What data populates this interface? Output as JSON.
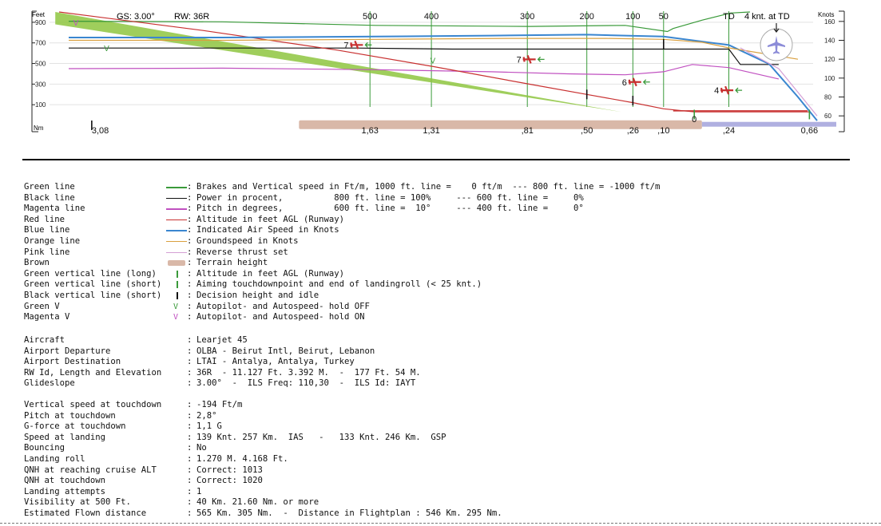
{
  "chart_data": {
    "type": "line",
    "title": "GS: 3.00°",
    "subtitle": "RW: 36R",
    "left_axis": {
      "label": "Feet",
      "ticks": [
        "900",
        "700",
        "500",
        "300",
        "100"
      ],
      "values": [
        900,
        700,
        500,
        300,
        100
      ],
      "range": [
        -100,
        1000
      ]
    },
    "right_axis": {
      "label": "Knots",
      "ticks": [
        "160",
        "140",
        "120",
        "100",
        "80",
        "60"
      ],
      "values": [
        160,
        140,
        120,
        100,
        80,
        60
      ],
      "range": [
        50,
        170
      ]
    },
    "x_axis": {
      "label": "Nm",
      "range": [
        3.3,
        -0.75
      ]
    },
    "top_markers": [
      {
        "label": "500",
        "x": 1.63
      },
      {
        "label": "400",
        "x": 1.31
      },
      {
        "label": "300",
        "x": 0.81
      },
      {
        "label": "200",
        "x": 0.5
      },
      {
        "label": "100",
        "x": 0.26
      },
      {
        "label": "50",
        "x": 0.1
      },
      {
        "label": "TD",
        "x": -0.24
      }
    ],
    "top_right_note": "4 knt. at TD",
    "bottom_labels": [
      {
        "label": "3,08",
        "x": 3.08
      },
      {
        "label": "1,63",
        "x": 1.63
      },
      {
        "label": "1,31",
        "x": 1.31
      },
      {
        "label": ",81",
        "x": 0.81
      },
      {
        "label": ",50",
        "x": 0.5
      },
      {
        "label": ",26",
        "x": 0.26
      },
      {
        "label": ",10",
        "x": 0.1
      },
      {
        "label": "0",
        "x": -0.06
      },
      {
        "label": ",24",
        "x": -0.24
      },
      {
        "label": "0,66",
        "x": -0.66
      }
    ],
    "series": [
      {
        "name": "Green line",
        "color": "#3a9a3a",
        "axis": "feet",
        "x": [
          3.2,
          2.4,
          1.6,
          0.8,
          0.3,
          0.08,
          0.05,
          -0.1,
          -0.25,
          -0.35
        ],
        "y": [
          910,
          905,
          870,
          860,
          870,
          810,
          840,
          920,
          990,
          1000
        ]
      },
      {
        "name": "Black line",
        "color": "#111111",
        "axis": "feet",
        "x": [
          3.2,
          2.4,
          1.7,
          1.2,
          0.8,
          0.4,
          0.1,
          -0.24,
          -0.3,
          -0.5
        ],
        "y": [
          650,
          650,
          650,
          640,
          640,
          640,
          640,
          640,
          490,
          490
        ]
      },
      {
        "name": "Magenta line",
        "color": "#c050c0",
        "axis": "feet",
        "x": [
          3.2,
          2.4,
          1.6,
          1.0,
          0.6,
          0.3,
          0.1,
          -0.05,
          -0.24,
          -0.5
        ],
        "y": [
          450,
          455,
          440,
          420,
          400,
          390,
          420,
          490,
          460,
          350
        ]
      },
      {
        "name": "Red line",
        "color": "#c83030",
        "axis": "feet",
        "x": [
          3.25,
          2.5,
          1.8,
          1.3,
          0.8,
          0.5,
          0.26,
          0.1,
          -0.06,
          -0.66
        ],
        "y": [
          1000,
          820,
          630,
          470,
          300,
          200,
          120,
          60,
          30,
          30
        ]
      },
      {
        "name": "Blue line",
        "color": "#3a86d0",
        "axis": "knots",
        "x": [
          3.2,
          2.8,
          2.4,
          1.6,
          1.0,
          0.5,
          0.1,
          -0.24,
          -0.45,
          -0.6,
          -0.7
        ],
        "y": [
          143,
          143,
          143,
          144,
          145,
          146,
          144,
          135,
          115,
          80,
          55
        ]
      },
      {
        "name": "Orange line",
        "color": "#d9a040",
        "axis": "knots",
        "x": [
          3.2,
          2.4,
          1.6,
          0.9,
          0.4,
          0.1,
          -0.1,
          -0.24,
          -0.6
        ],
        "y": [
          140,
          140,
          141,
          142,
          142,
          141,
          138,
          132,
          120
        ]
      },
      {
        "name": "Pink line",
        "color": "#d59fd5",
        "axis": "knots",
        "x": [
          -0.3,
          -0.5,
          -0.62,
          -0.7
        ],
        "y": [
          132,
          110,
          80,
          60
        ]
      }
    ],
    "glideslope_band": {
      "color": "#8ec63f",
      "x": [
        3.27,
        0.32
      ],
      "y_top": [
        1000,
        30
      ],
      "y_bottom": [
        880,
        30
      ]
    },
    "terrain": {
      "color": "#d9b8a8",
      "x": [
        2.0,
        -0.1
      ],
      "y": -90
    },
    "runway": {
      "color": "#b0b0e0",
      "x": [
        -0.1,
        -0.8
      ],
      "y": -90
    },
    "runway_baseline": {
      "color": "#c83030",
      "x": [
        0.05,
        -0.65
      ],
      "y": 40
    },
    "green_verticals": [
      1.63,
      1.31,
      0.81,
      0.5,
      0.26,
      0.1,
      -0.24
    ],
    "short_markers": [
      {
        "color": "#111111",
        "x": 3.08,
        "y": -100
      },
      {
        "color": "#111111",
        "x": 0.5,
        "y": 200
      },
      {
        "color": "#111111",
        "x": 0.26,
        "y": 140
      },
      {
        "color": "#111111",
        "x": 0.1,
        "y": 690
      },
      {
        "color": "#3a9a3a",
        "x": -0.06,
        "y": 5
      },
      {
        "color": "#3a9a3a",
        "x": -0.66,
        "y": 5
      }
    ],
    "v_marks": [
      {
        "color": "#c050c0",
        "x": 3.16,
        "y": 900
      },
      {
        "color": "#3a9a3a",
        "x": 3.0,
        "y": 650
      },
      {
        "color": "#3a9a3a",
        "x": 1.3,
        "y": 530
      }
    ],
    "wind_markers": [
      {
        "label": "7",
        "x": 1.7,
        "y": 680
      },
      {
        "label": "7",
        "x": 0.8,
        "y": 540
      },
      {
        "label": "6",
        "x": 0.25,
        "y": 320
      },
      {
        "label": "4",
        "x": -0.23,
        "y": 240
      }
    ]
  },
  "legend": [
    {
      "name": "Green line",
      "symbol": "line",
      "color": "#3a9a3a",
      "desc": "Brakes and Vertical speed in Ft/m, 1000 ft. line =    0 ft/m  --- 800 ft. line = -1000 ft/m"
    },
    {
      "name": "Black line",
      "symbol": "line",
      "color": "#111111",
      "desc": "Power in procent,          800 ft. line = 100%     --- 600 ft. line =     0%"
    },
    {
      "name": "Magenta line",
      "symbol": "line",
      "color": "#c050c0",
      "desc": "Pitch in degrees,          600 ft. line =  10°     --- 400 ft. line =     0°"
    },
    {
      "name": "Red line",
      "symbol": "line",
      "color": "#c83030",
      "desc": "Altitude in feet AGL (Runway)"
    },
    {
      "name": "Blue line",
      "symbol": "line",
      "color": "#3a86d0",
      "desc": "Indicated Air Speed in Knots"
    },
    {
      "name": "Orange line",
      "symbol": "line",
      "color": "#d9a040",
      "desc": "Groundspeed in Knots"
    },
    {
      "name": "Pink line",
      "symbol": "line",
      "color": "#d59fd5",
      "desc": "Reverse thrust set"
    },
    {
      "name": "Brown",
      "symbol": "terrain",
      "color": "#d9b8a8",
      "desc": "Terrain height"
    },
    {
      "name": "Green vertical line (long)",
      "symbol": "vbar",
      "color": "#3a9a3a",
      "desc": "Altitude in feet AGL (Runway)"
    },
    {
      "name": "Green vertical line (short)",
      "symbol": "vbar",
      "color": "#3a9a3a",
      "desc": "Aiming touchdownpoint and end of landingroll (< 25 knt.)"
    },
    {
      "name": "Black vertical line (short)",
      "symbol": "vbar",
      "color": "#111111",
      "desc": "Decision height and idle"
    },
    {
      "name": "Green V",
      "symbol": "v",
      "glyph": "V",
      "color": "#3a9a3a",
      "desc": "Autopilot- and Autospeed- hold OFF"
    },
    {
      "name": "Magenta V",
      "symbol": "v",
      "glyph": "V",
      "color": "#c050c0",
      "desc": "Autopilot- and Autospeed- hold ON"
    }
  ],
  "flight_info": [
    {
      "name": "Aircraft",
      "value": "Learjet 45"
    },
    {
      "name": "Airport Departure",
      "value": "OLBA - Beirut Intl, Beirut, Lebanon"
    },
    {
      "name": "Airport Destination",
      "value": "LTAI - Antalya, Antalya, Turkey"
    },
    {
      "name": "RW Id, Length and Elevation",
      "value": "36R  - 11.127 Ft. 3.392 M.  -  177 Ft. 54 M."
    },
    {
      "name": "Glideslope",
      "value": "3.00°  -  ILS Freq: 110,30  -  ILS Id: IAYT"
    }
  ],
  "landing_stats": [
    {
      "name": "Vertical speed at touchdown",
      "value": "-194 Ft/m"
    },
    {
      "name": "Pitch at touchdown",
      "value": "2,8°"
    },
    {
      "name": "G-force at touchdown",
      "value": "1,1 G"
    },
    {
      "name": "Speed at landing",
      "value": "139 Knt. 257 Km.  IAS   -   133 Knt. 246 Km.  GSP"
    },
    {
      "name": "Bouncing",
      "value": "No"
    },
    {
      "name": "Landing roll",
      "value": "1.270 M. 4.168 Ft."
    },
    {
      "name": "QNH at reaching cruise ALT",
      "value": "Correct: 1013"
    },
    {
      "name": "QNH at touchdown",
      "value": "Correct: 1020"
    },
    {
      "name": "Landing attempts",
      "value": "1"
    },
    {
      "name": "Visibility at 500 Ft.",
      "value": "40 Km. 21.60 Nm. or more"
    },
    {
      "name": "Estimated Flown distance",
      "value": "565 Km. 305 Nm.  -  Distance in Flightplan : 546 Km. 295 Nm."
    }
  ],
  "separator_glyph": ":"
}
